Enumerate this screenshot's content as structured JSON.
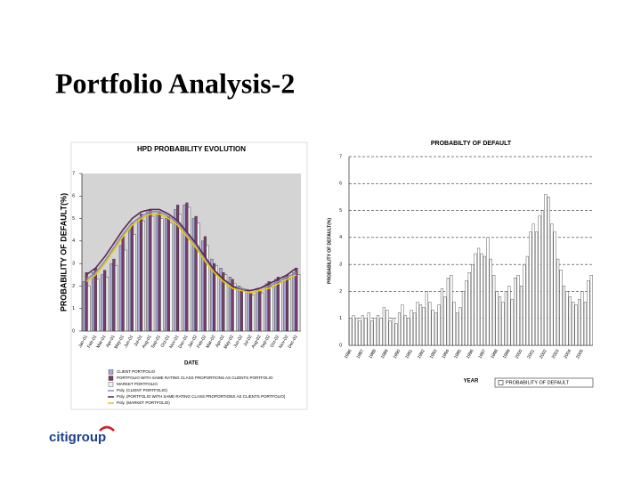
{
  "slide_title": "Portfolio Analysis-2",
  "logo": "citigroup",
  "chart_data": [
    {
      "type": "bar",
      "title": "HPD PROBABILITY EVOLUTION",
      "y_label": "PROBABILITY OF DEFAULT(%)",
      "x_label": "DATE",
      "categories": [
        "Jan-01",
        "Feb-01",
        "Mar-01",
        "Apr-01",
        "May-01",
        "Jun-01",
        "Jul-01",
        "Aug-01",
        "Sep-01",
        "Oct-01",
        "Nov-01",
        "Dec-01",
        "Jan-02",
        "Feb-02",
        "Mar-02",
        "Apr-02",
        "May-02",
        "Jun-02",
        "Jul-02",
        "Aug-02",
        "Sep-02",
        "Oct-02",
        "Nov-02",
        "Dec-02"
      ],
      "ylim": [
        0,
        7
      ],
      "yticks": [
        0,
        1,
        2,
        3,
        4,
        5,
        6,
        7
      ],
      "series": [
        {
          "name": "CLIENT PORTFOLIO",
          "type": "bar",
          "color": "#a6a6d8",
          "values": [
            2.2,
            2.6,
            2.5,
            3.0,
            3.8,
            4.5,
            5.0,
            5.3,
            5.2,
            5.0,
            5.4,
            5.6,
            5.0,
            4.0,
            3.2,
            2.8,
            2.4,
            2.0,
            1.8,
            1.9,
            2.1,
            2.3,
            2.4,
            2.6
          ]
        },
        {
          "name": "PORTFOLIO WITH SAME RATING CLASS PROPORTIONS AS CLIENTS PORTFOLIO",
          "type": "bar",
          "color": "#7a3b6a",
          "values": [
            2.6,
            2.8,
            2.7,
            3.2,
            4.2,
            4.8,
            5.2,
            5.4,
            5.3,
            5.1,
            5.6,
            5.7,
            5.1,
            4.2,
            3.0,
            2.6,
            2.3,
            1.9,
            1.7,
            1.8,
            2.2,
            2.4,
            2.5,
            2.8
          ]
        },
        {
          "name": "MARKET PORTFOLIO",
          "type": "bar",
          "color": "#f2f2f2",
          "values": [
            2.0,
            2.3,
            2.4,
            2.9,
            3.6,
            4.3,
            4.9,
            5.1,
            5.0,
            4.8,
            5.2,
            5.5,
            4.8,
            3.8,
            2.9,
            2.5,
            2.1,
            1.8,
            1.6,
            1.7,
            2.0,
            2.2,
            2.3,
            2.5
          ]
        },
        {
          "name": "Poly. (CLIENT PORTFOLIO)",
          "type": "line",
          "color": "#8a8ac8",
          "values": [
            2.3,
            2.6,
            3.1,
            3.7,
            4.3,
            4.8,
            5.1,
            5.3,
            5.3,
            5.1,
            4.8,
            4.3,
            3.8,
            3.2,
            2.7,
            2.3,
            2.0,
            1.9,
            1.8,
            1.9,
            2.0,
            2.2,
            2.4,
            2.6
          ]
        },
        {
          "name": "Poly. (PORTFOLIO WITH SAME RATING CLASS PROPORTIONS AS CLIENTS PORTFOLIO)",
          "type": "line",
          "color": "#5a2a50",
          "values": [
            2.5,
            2.8,
            3.3,
            3.9,
            4.5,
            5.0,
            5.3,
            5.4,
            5.4,
            5.2,
            4.9,
            4.4,
            3.9,
            3.3,
            2.7,
            2.3,
            2.0,
            1.8,
            1.8,
            1.9,
            2.1,
            2.3,
            2.5,
            2.8
          ]
        },
        {
          "name": "Poly. (MARKET PORTFOLIO)",
          "type": "line",
          "color": "#e8c800",
          "values": [
            2.2,
            2.5,
            3.0,
            3.6,
            4.2,
            4.7,
            5.0,
            5.2,
            5.2,
            5.0,
            4.7,
            4.2,
            3.7,
            3.1,
            2.6,
            2.2,
            1.9,
            1.8,
            1.7,
            1.8,
            1.9,
            2.1,
            2.3,
            2.5
          ]
        }
      ]
    },
    {
      "type": "bar",
      "title": "PROBABILTY OF DEFAULT",
      "y_label": "PROBABILITY OF DEFAULT(%)",
      "x_label": "YEAR",
      "categories": [
        "1986",
        null,
        null,
        null,
        "1987",
        null,
        null,
        null,
        "1988",
        null,
        null,
        null,
        "1989",
        null,
        null,
        null,
        "1990",
        null,
        null,
        null,
        "1991",
        null,
        null,
        null,
        "1992",
        null,
        null,
        null,
        "1993",
        null,
        null,
        null,
        "1994",
        null,
        null,
        null,
        "1995",
        null,
        null,
        null,
        "1996",
        null,
        null,
        null,
        "1997",
        null,
        null,
        null,
        "1998",
        null,
        null,
        null,
        "1999",
        null,
        null,
        null,
        "2000",
        null,
        null,
        null,
        "2001",
        null,
        null,
        null,
        "2002",
        null,
        null,
        null,
        "2003",
        null,
        null,
        null,
        "2004",
        null,
        null,
        null,
        "2005",
        null,
        null,
        null
      ],
      "ylim": [
        0,
        7
      ],
      "yticks": [
        0,
        1,
        2,
        3,
        4,
        5,
        6,
        7
      ],
      "grid": true,
      "series": [
        {
          "name": "PROBABILITY OF DEFAULT",
          "type": "bar",
          "color": "#ffffff",
          "values": [
            1.0,
            1.1,
            1.0,
            0.9,
            1.1,
            1.0,
            1.2,
            0.9,
            1.0,
            1.1,
            1.0,
            1.4,
            1.3,
            0.9,
            1.0,
            0.8,
            1.2,
            1.5,
            1.1,
            1.0,
            1.3,
            1.2,
            1.6,
            1.5,
            1.4,
            2.0,
            1.6,
            1.3,
            1.2,
            1.5,
            2.1,
            1.8,
            2.5,
            2.6,
            1.6,
            1.2,
            1.4,
            2.0,
            2.4,
            2.7,
            3.0,
            3.4,
            3.6,
            3.4,
            3.3,
            4.0,
            3.2,
            2.6,
            2.0,
            1.8,
            1.6,
            2.0,
            2.2,
            1.7,
            2.5,
            2.6,
            2.2,
            3.0,
            3.3,
            4.2,
            4.5,
            4.2,
            4.8,
            5.0,
            5.6,
            5.5,
            4.5,
            4.2,
            3.2,
            2.8,
            2.2,
            2.0,
            1.8,
            1.6,
            1.5,
            1.7,
            2.0,
            1.6,
            2.4,
            2.6
          ]
        }
      ]
    }
  ]
}
